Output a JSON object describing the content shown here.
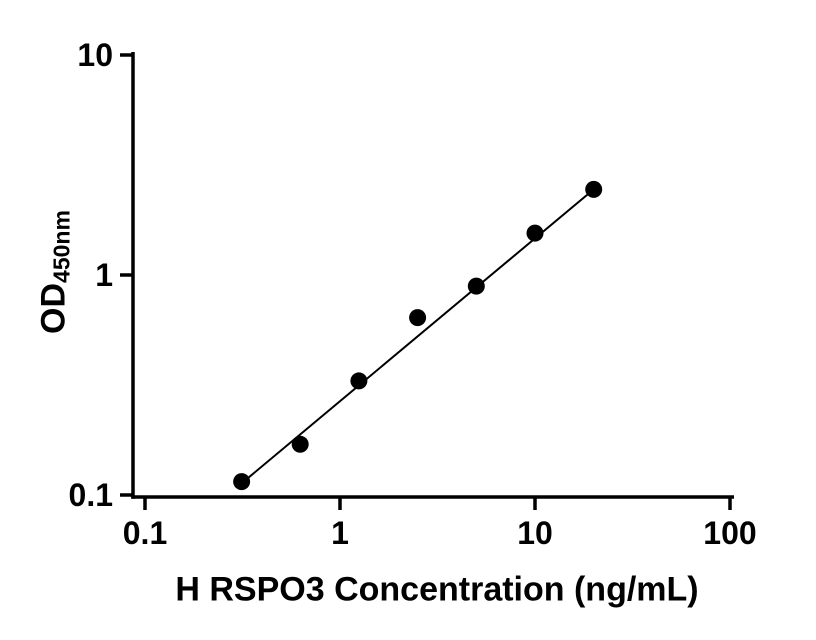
{
  "chart_data": {
    "type": "scatter",
    "title": "",
    "xlabel": "H RSPO3 Concentration (ng/mL)",
    "ylabel_main": "OD",
    "ylabel_sub": "450nm",
    "x_scale": "log",
    "y_scale": "log",
    "xlim": [
      0.1,
      100
    ],
    "ylim": [
      0.1,
      10
    ],
    "x_ticks": [
      0.1,
      1,
      10,
      100
    ],
    "x_tick_labels": [
      "0.1",
      "1",
      "10",
      "100"
    ],
    "y_ticks": [
      0.1,
      1,
      10
    ],
    "y_tick_labels": [
      "0.1",
      "1",
      "10"
    ],
    "grid": false,
    "legend": "none",
    "series": [
      {
        "x": [
          0.313,
          0.625,
          1.25,
          2.5,
          5,
          10,
          20
        ],
        "y": [
          0.115,
          0.17,
          0.33,
          0.64,
          0.89,
          1.55,
          2.45
        ],
        "marker": "filled-circle",
        "color": "#000000"
      }
    ],
    "fit_line": {
      "x_start": 0.313,
      "y_start": 0.113,
      "x_end": 20,
      "y_end": 2.45
    },
    "colors": {
      "axis": "#000000",
      "marker": "#000000",
      "line": "#000000",
      "background": "#ffffff"
    }
  }
}
